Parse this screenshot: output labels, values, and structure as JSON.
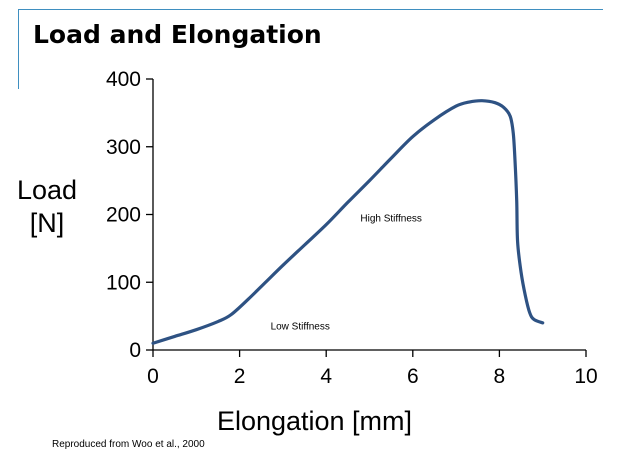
{
  "slide": {
    "title": "Load and Elongation",
    "credit": "Reproduced from Woo et al., 2000"
  },
  "chart_data": {
    "type": "line",
    "title": "",
    "xlabel": "Elongation [mm]",
    "ylabel_lines": [
      "Load",
      "[N]"
    ],
    "xlim": [
      0,
      10
    ],
    "ylim": [
      0,
      400
    ],
    "x_ticks": [
      0,
      2,
      4,
      6,
      8,
      10
    ],
    "y_ticks": [
      0,
      100,
      200,
      300,
      400
    ],
    "grid": false,
    "line_color": "#2e5283",
    "series": [
      {
        "x": [
          0,
          0.5,
          1.0,
          1.5,
          1.8,
          2.2,
          2.6,
          3.0,
          3.5,
          4.0,
          4.5,
          5.0,
          5.5,
          6.0,
          6.5,
          7.0,
          7.3,
          7.6,
          7.9,
          8.1,
          8.25,
          8.32,
          8.36,
          8.4,
          8.42,
          8.5,
          8.6,
          8.7,
          8.8,
          9.0
        ],
        "y": [
          10,
          20,
          30,
          42,
          52,
          75,
          100,
          125,
          155,
          185,
          218,
          250,
          283,
          315,
          340,
          360,
          366,
          368,
          365,
          358,
          345,
          320,
          280,
          220,
          160,
          115,
          80,
          55,
          45,
          40
        ]
      }
    ],
    "annotations": [
      {
        "text": "High Stiffness",
        "x": 5.5,
        "y": 190
      },
      {
        "text": "Low Stiffness",
        "x": 3.4,
        "y": 30
      }
    ]
  }
}
